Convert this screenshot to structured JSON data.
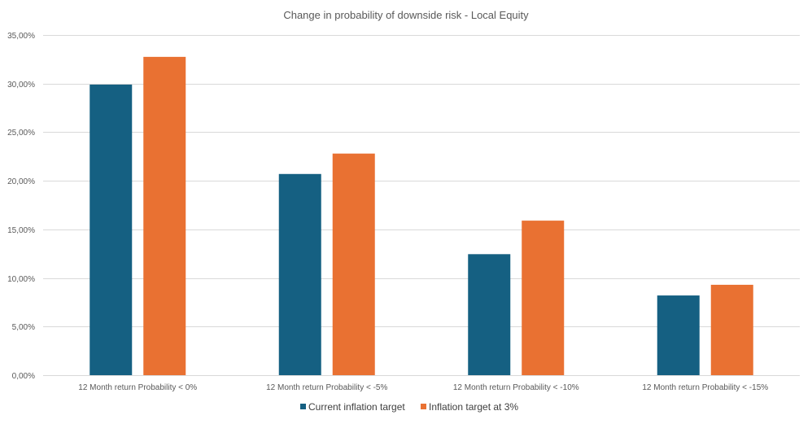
{
  "chart_data": {
    "type": "bar",
    "title": "Change in probability of downside risk - Local Equity",
    "xlabel": "",
    "ylabel": "",
    "categories": [
      "12 Month return Probability < 0%",
      "12 Month return Probability < -5%",
      "12 Month return Probability < -10%",
      "12 Month return Probability < -15%"
    ],
    "series": [
      {
        "name": "Current inflation target",
        "color": "#156082",
        "values": [
          29.9,
          20.7,
          12.45,
          8.2
        ]
      },
      {
        "name": "Inflation target at 3%",
        "color": "#E97132",
        "values": [
          32.75,
          22.8,
          15.9,
          9.3
        ]
      }
    ],
    "ylim": [
      0,
      35
    ],
    "yticks": [
      0,
      5,
      10,
      15,
      20,
      25,
      30,
      35
    ],
    "ytick_labels": [
      "0,00%",
      "5,00%",
      "10,00%",
      "15,00%",
      "20,00%",
      "25,00%",
      "30,00%",
      "35,00%"
    ],
    "grid": true,
    "legend": "bottom"
  }
}
